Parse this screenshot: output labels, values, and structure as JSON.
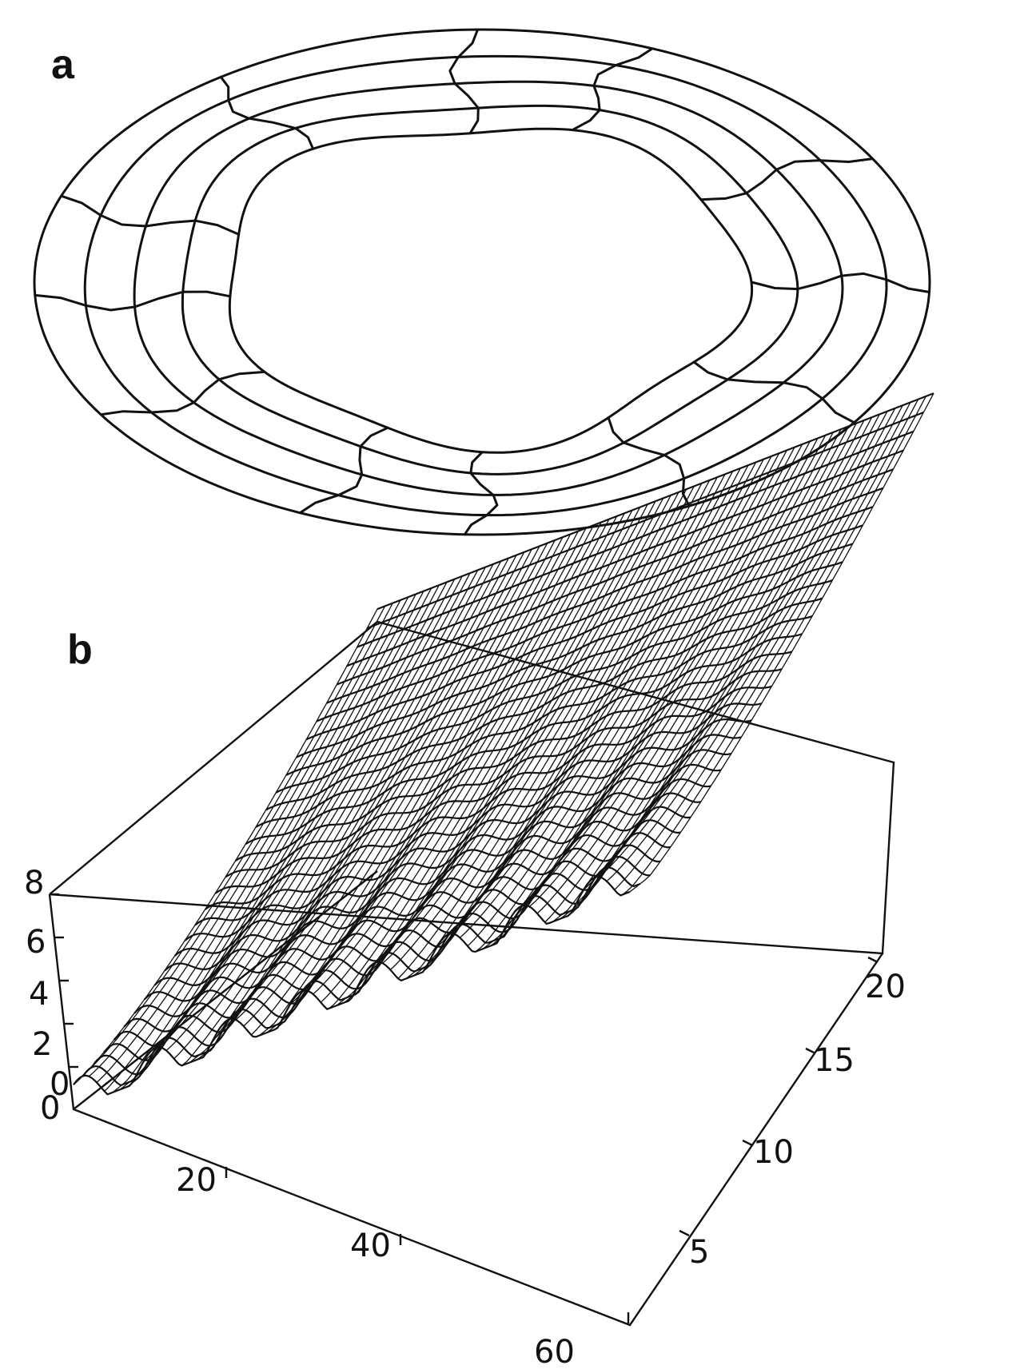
{
  "panels": {
    "a": {
      "label": "a",
      "rings": 5,
      "spokes": 10
    },
    "b": {
      "label": "b",
      "x_ticks": [
        "20",
        "40",
        "60"
      ],
      "y_ticks": [
        "5",
        "10",
        "15",
        "20"
      ],
      "z_ticks": [
        "0",
        "2",
        "4",
        "6",
        "8"
      ],
      "origin_label": "0"
    }
  },
  "chart_data": {
    "type": "surface",
    "title": "",
    "x_ticks": [
      0,
      20,
      40,
      60
    ],
    "y_ticks": [
      5,
      10,
      15,
      20
    ],
    "z_ticks": [
      0,
      2,
      4,
      6,
      8
    ],
    "xlim": [
      0,
      64
    ],
    "ylim": [
      0,
      21
    ],
    "zlim": [
      0,
      8
    ],
    "description_values": {
      "z_min_at_y0": 0.3,
      "z_max_at_y21": 8,
      "ripple_count_along_x": 8
    }
  }
}
